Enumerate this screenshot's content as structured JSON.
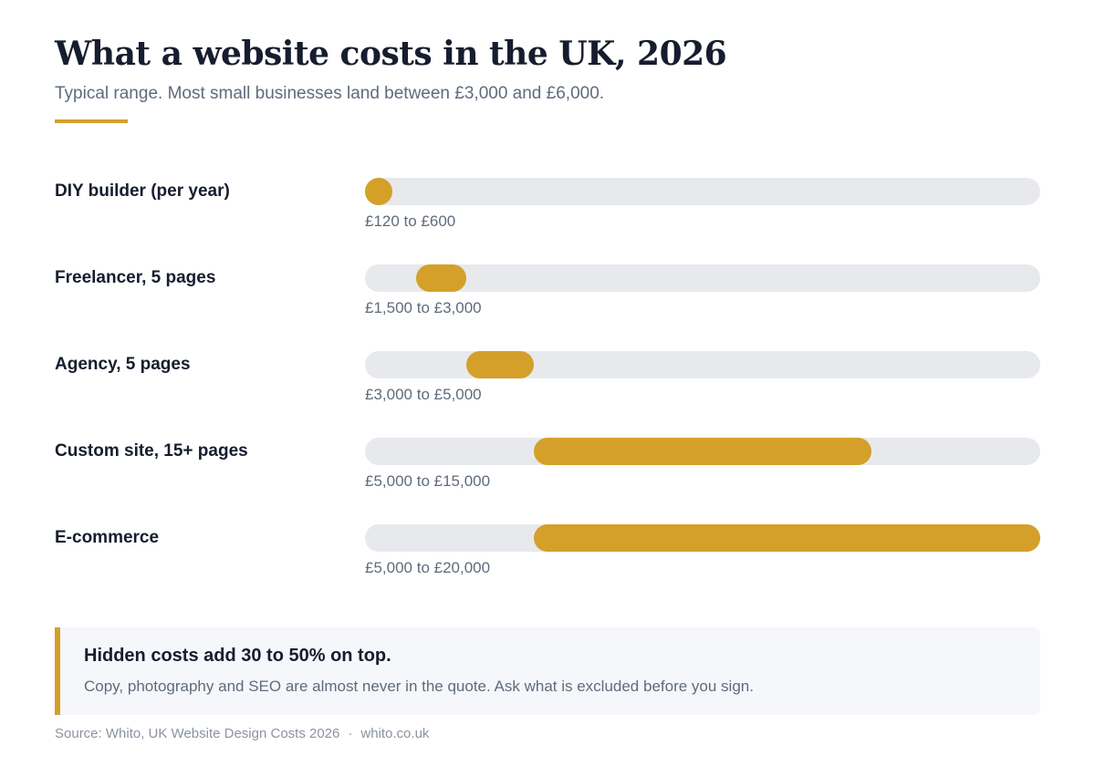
{
  "header": {
    "title": "What a website costs in the UK, 2026",
    "subtitle": "Typical range. Most small businesses land between £3,000 and £6,000."
  },
  "chart_data": {
    "type": "bar",
    "subtype": "range-bar",
    "title": "What a website costs in the UK, 2026",
    "subtitle": "Typical range. Most small businesses land between £3,000 and £6,000.",
    "unit": "GBP",
    "xlim": [
      0,
      20000
    ],
    "grid": false,
    "categories": [
      "DIY builder (per year)",
      "Freelancer, 5 pages",
      "Agency, 5 pages",
      "Custom site, 15+ pages",
      "E-commerce"
    ],
    "ranges": [
      {
        "low": 120,
        "high": 600,
        "label": "£120 to £600"
      },
      {
        "low": 1500,
        "high": 3000,
        "label": "£1,500 to £3,000"
      },
      {
        "low": 3000,
        "high": 5000,
        "label": "£3,000 to £5,000"
      },
      {
        "low": 5000,
        "high": 15000,
        "label": "£5,000 to £15,000"
      },
      {
        "low": 5000,
        "high": 20000,
        "label": "£5,000 to £20,000"
      }
    ]
  },
  "callout": {
    "title": "Hidden costs add 30 to 50% on top.",
    "body": "Copy, photography and SEO are almost never in the quote. Ask what is excluded before you sign."
  },
  "footer": {
    "source": "Source: Whito, UK Website Design Costs 2026",
    "separator": "·",
    "site": "whito.co.uk"
  },
  "colors": {
    "accent": "#d4a02a",
    "track": "#e7e9ed",
    "heading": "#161d2e",
    "muted": "#5f6b7c"
  }
}
